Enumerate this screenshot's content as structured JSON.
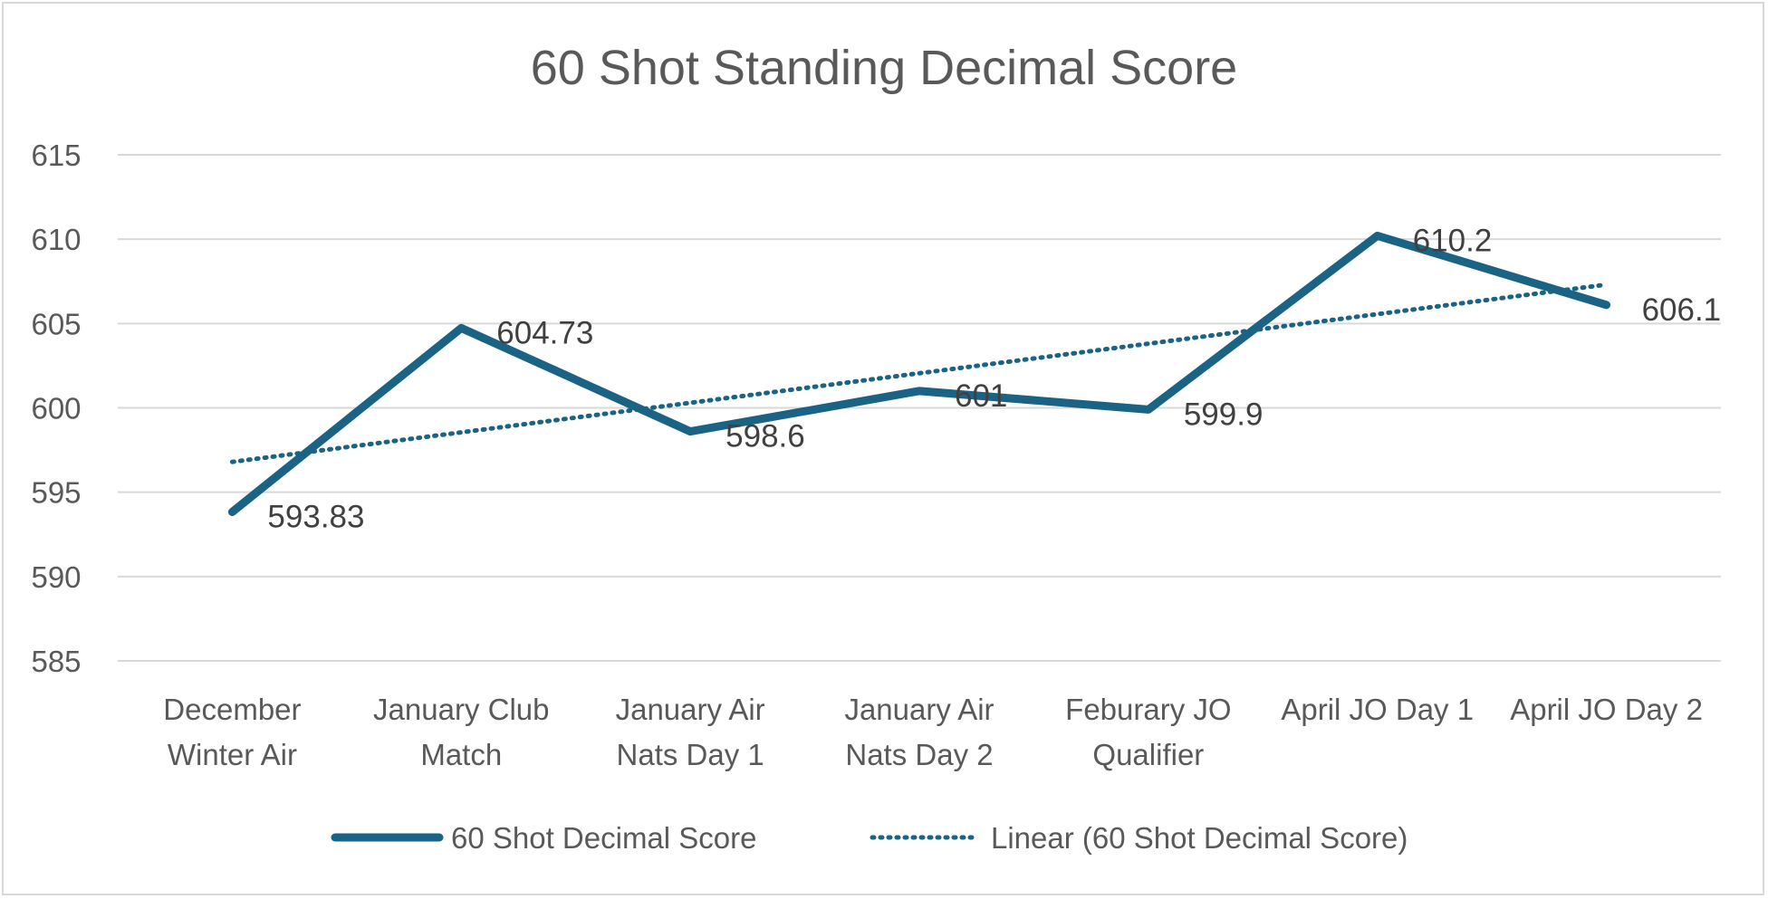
{
  "chart_data": {
    "type": "line",
    "title": "60 Shot Standing Decimal Score",
    "xlabel": "",
    "ylabel": "",
    "categories": [
      [
        "December",
        "Winter Air"
      ],
      [
        "January Club",
        "Match"
      ],
      [
        "January Air",
        "Nats Day 1"
      ],
      [
        "January Air",
        "Nats Day 2"
      ],
      [
        "Feburary JO",
        "Qualifier"
      ],
      [
        "April JO Day 1"
      ],
      [
        "April JO Day 2"
      ]
    ],
    "series": [
      {
        "name": "60 Shot Decimal Score",
        "values": [
          593.83,
          604.73,
          598.6,
          601,
          599.9,
          610.2,
          606.1
        ],
        "data_labels": [
          "593.83",
          "604.73",
          "598.6",
          "601",
          "599.9",
          "610.2",
          "606.1"
        ],
        "color": "#1b6385"
      }
    ],
    "trendline": {
      "name": "Linear (60 Shot Decimal Score)",
      "type": "linear",
      "style": "dotted",
      "color": "#1b6385"
    },
    "ylim": [
      585,
      615
    ],
    "yticks": [
      615,
      610,
      605,
      600,
      595,
      590,
      585
    ],
    "grid": true,
    "legend_position": "bottom",
    "gridline_color": "#d9d9d9"
  }
}
